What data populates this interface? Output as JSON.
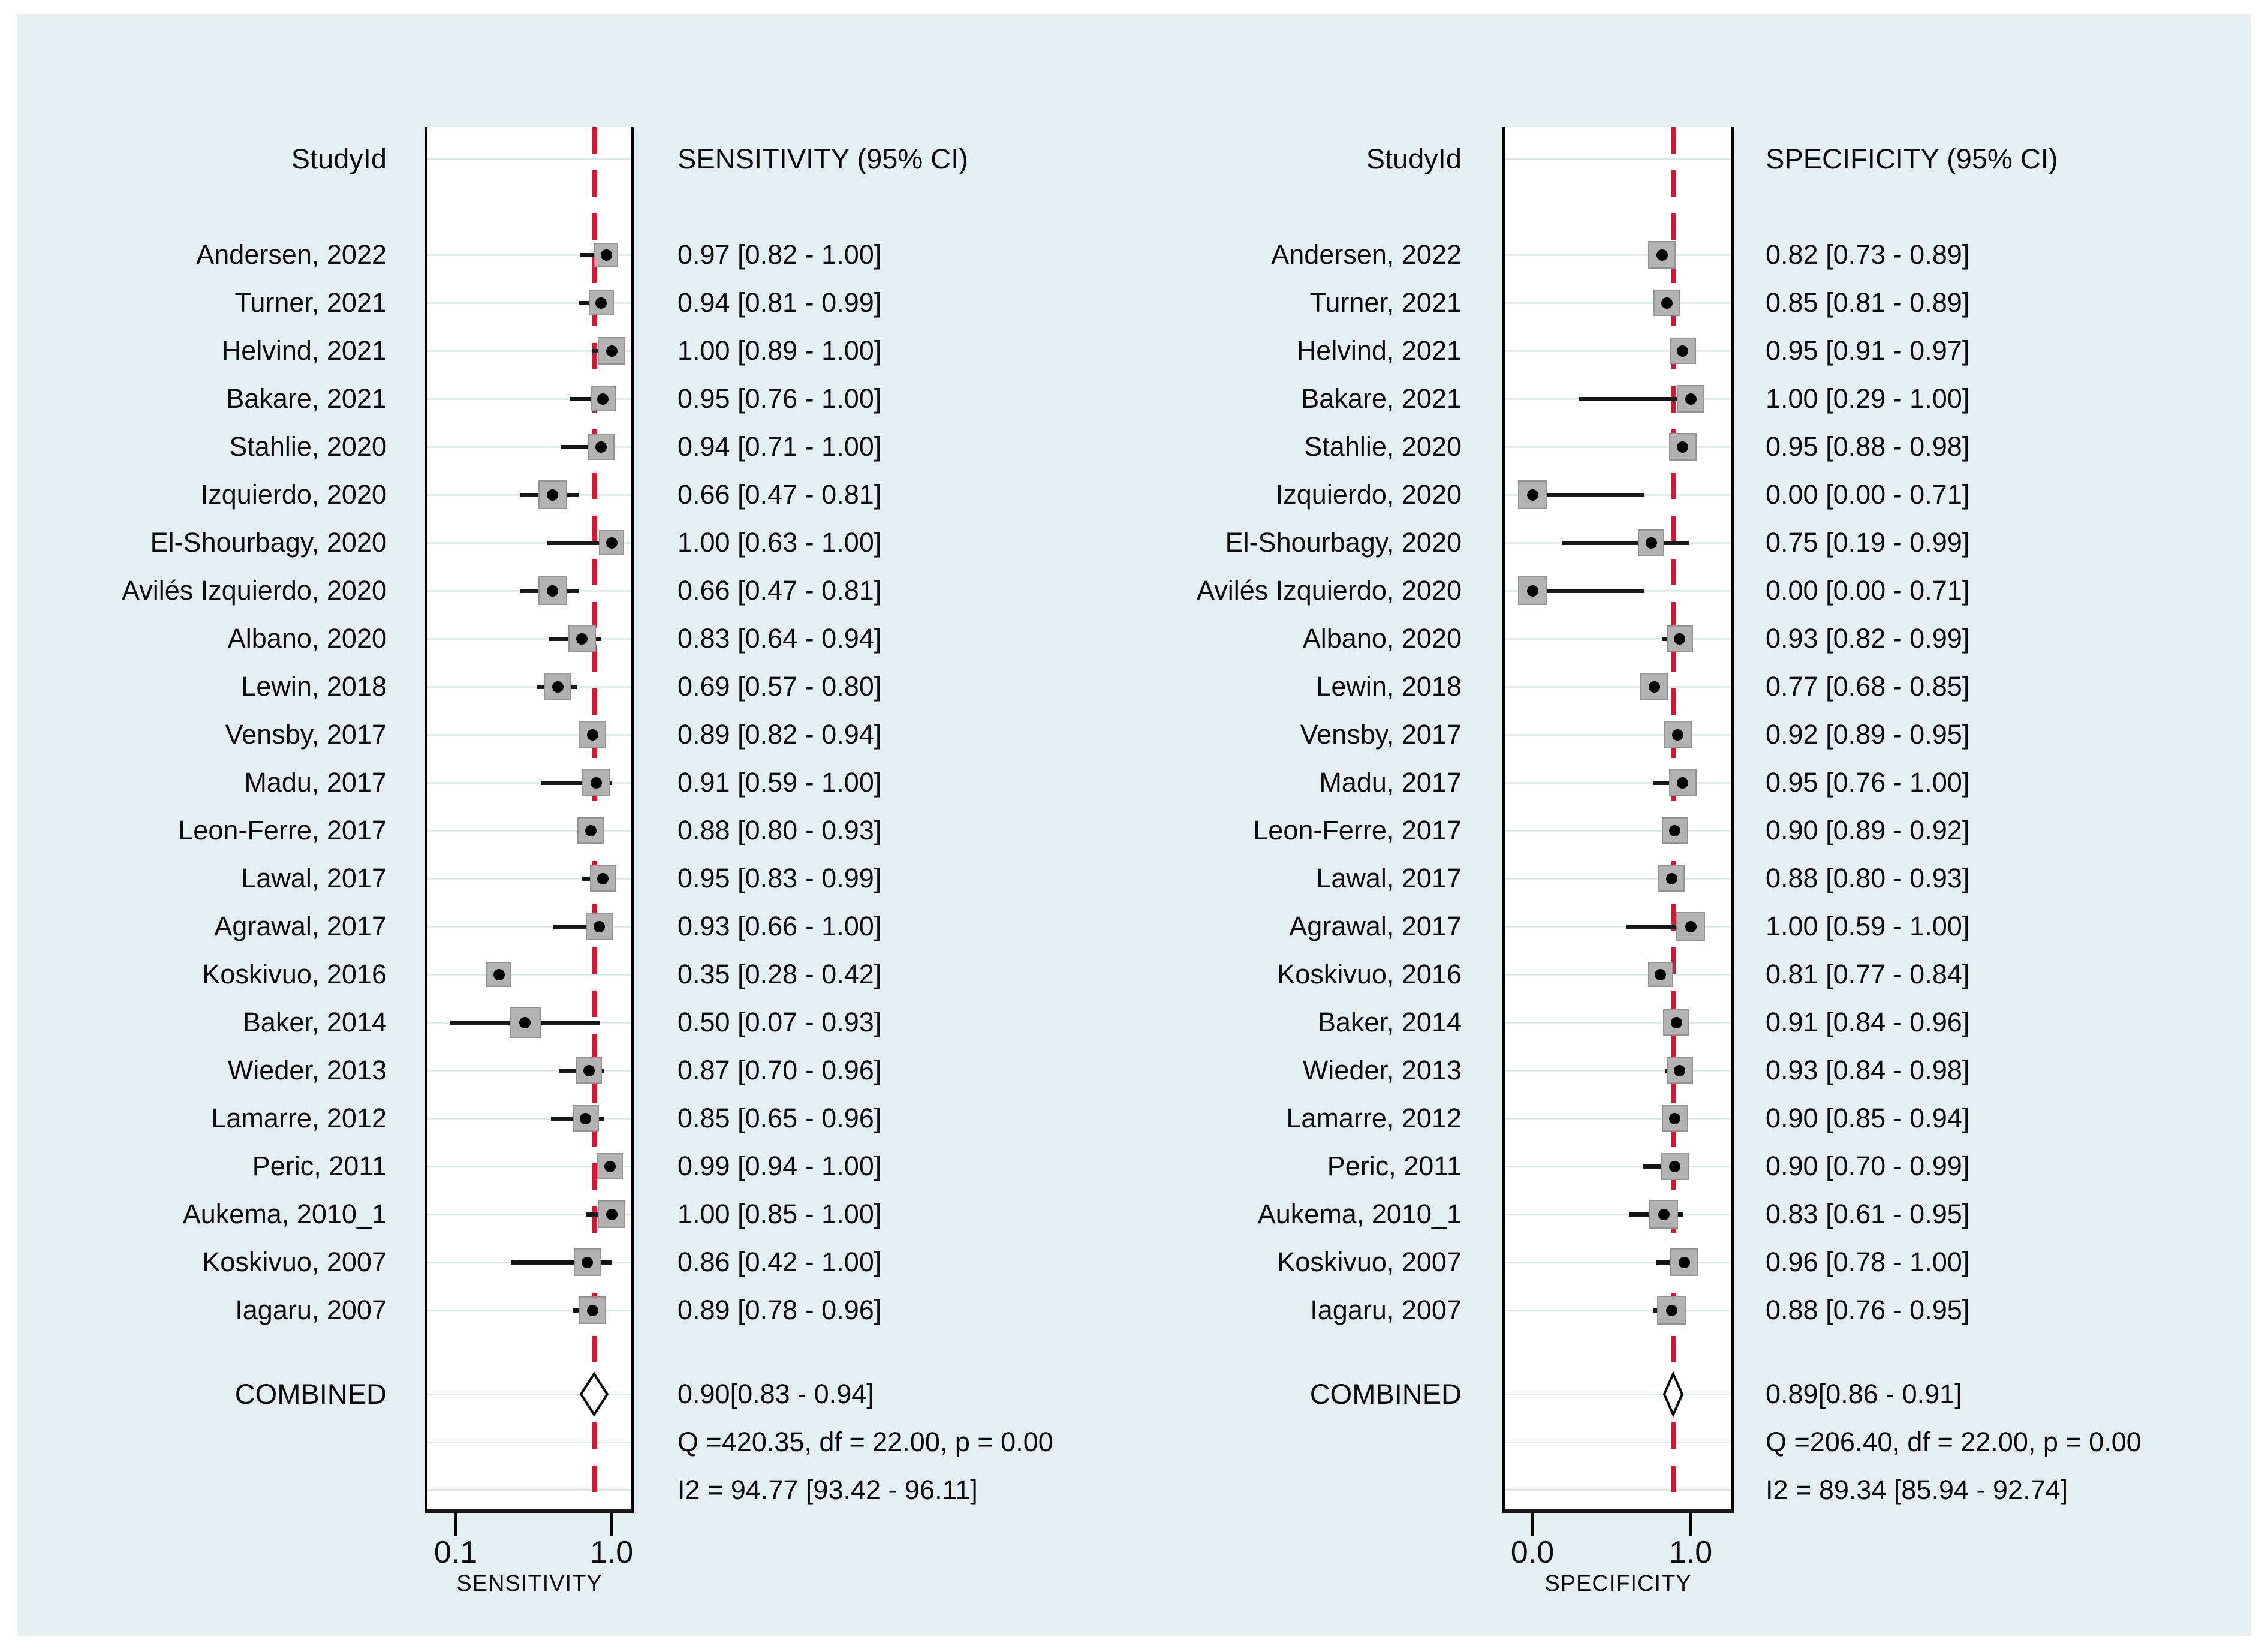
{
  "figure": {
    "background_color": "#e4eef0",
    "plot_background": "#ffffff",
    "grid_color": "#d9e9ec",
    "marker_color": "#b2b2b2",
    "ci_color": "#161616",
    "reference_line_color": "#e8112d",
    "text_color": "#0a0a0a"
  },
  "chart_data": {
    "type": "forest",
    "layout_hint": "two side-by-side forest plots, dashed red reference line at combined estimate, grid on, open diamond for pooled result",
    "panels": [
      {
        "study_header": "StudyId",
        "value_header": "SENSITIVITY (95% CI)",
        "axis_label": "SENSITIVITY",
        "ref_value": 0.9,
        "axis_ticks": [
          {
            "label": "0.1",
            "value": 0.1
          },
          {
            "label": "1.0",
            "value": 1.0
          }
        ],
        "rows": [
          {
            "study": "Andersen, 2022",
            "label": "0.97 [0.82 - 1.00]",
            "est": 0.97,
            "lo": 0.82,
            "hi": 1.0,
            "box": 40
          },
          {
            "study": "Turner, 2021",
            "label": "0.94 [0.81 - 0.99]",
            "est": 0.94,
            "lo": 0.81,
            "hi": 0.99,
            "box": 42
          },
          {
            "study": "Helvind, 2021",
            "label": "1.00 [0.89 - 1.00]",
            "est": 1.0,
            "lo": 0.89,
            "hi": 1.0,
            "box": 46
          },
          {
            "study": "Bakare, 2021",
            "label": "0.95 [0.76 - 1.00]",
            "est": 0.95,
            "lo": 0.76,
            "hi": 1.0,
            "box": 42
          },
          {
            "study": "Stahlie, 2020",
            "label": "0.94 [0.71 - 1.00]",
            "est": 0.94,
            "lo": 0.71,
            "hi": 1.0,
            "box": 44
          },
          {
            "study": "Izquierdo, 2020",
            "label": "0.66 [0.47 - 0.81]",
            "est": 0.66,
            "lo": 0.47,
            "hi": 0.81,
            "box": 48
          },
          {
            "study": "El-Shourbagy, 2020",
            "label": "1.00 [0.63 - 1.00]",
            "est": 1.0,
            "lo": 0.63,
            "hi": 1.0,
            "box": 42
          },
          {
            "study": "Avilés Izquierdo, 2020",
            "label": "0.66 [0.47 - 0.81]",
            "est": 0.66,
            "lo": 0.47,
            "hi": 0.81,
            "box": 48
          },
          {
            "study": "Albano, 2020",
            "label": "0.83 [0.64 - 0.94]",
            "est": 0.83,
            "lo": 0.64,
            "hi": 0.94,
            "box": 46
          },
          {
            "study": "Lewin, 2018",
            "label": "0.69 [0.57 - 0.80]",
            "est": 0.69,
            "lo": 0.57,
            "hi": 0.8,
            "box": 46
          },
          {
            "study": "Vensby, 2017",
            "label": "0.89 [0.82 - 0.94]",
            "est": 0.89,
            "lo": 0.82,
            "hi": 0.94,
            "box": 46
          },
          {
            "study": "Madu, 2017",
            "label": "0.91 [0.59 - 1.00]",
            "est": 0.91,
            "lo": 0.59,
            "hi": 1.0,
            "box": 46
          },
          {
            "study": "Leon-Ferre, 2017",
            "label": "0.88 [0.80 - 0.93]",
            "est": 0.88,
            "lo": 0.8,
            "hi": 0.93,
            "box": 44
          },
          {
            "study": "Lawal, 2017",
            "label": "0.95 [0.83 - 0.99]",
            "est": 0.95,
            "lo": 0.83,
            "hi": 0.99,
            "box": 44
          },
          {
            "study": "Agrawal, 2017",
            "label": "0.93 [0.66 - 1.00]",
            "est": 0.93,
            "lo": 0.66,
            "hi": 1.0,
            "box": 46
          },
          {
            "study": "Koskivuo, 2016",
            "label": "0.35 [0.28 - 0.42]",
            "est": 0.35,
            "lo": 0.28,
            "hi": 0.42,
            "box": 42
          },
          {
            "study": "Baker, 2014",
            "label": "0.50 [0.07 - 0.93]",
            "est": 0.5,
            "lo": 0.07,
            "hi": 0.93,
            "box": 52
          },
          {
            "study": "Wieder, 2013",
            "label": "0.87 [0.70 - 0.96]",
            "est": 0.87,
            "lo": 0.7,
            "hi": 0.96,
            "box": 44
          },
          {
            "study": "Lamarre, 2012",
            "label": "0.85 [0.65 - 0.96]",
            "est": 0.85,
            "lo": 0.65,
            "hi": 0.96,
            "box": 44
          },
          {
            "study": "Peric, 2011",
            "label": "0.99 [0.94 - 1.00]",
            "est": 0.99,
            "lo": 0.94,
            "hi": 1.0,
            "box": 44
          },
          {
            "study": "Aukema, 2010_1",
            "label": "1.00 [0.85 - 1.00]",
            "est": 1.0,
            "lo": 0.85,
            "hi": 1.0,
            "box": 46
          },
          {
            "study": "Koskivuo, 2007",
            "label": "0.86 [0.42 - 1.00]",
            "est": 0.86,
            "lo": 0.42,
            "hi": 1.0,
            "box": 46
          },
          {
            "study": "Iagaru, 2007",
            "label": "0.89 [0.78 - 0.96]",
            "est": 0.89,
            "lo": 0.78,
            "hi": 0.96,
            "box": 46
          }
        ],
        "combined": {
          "label": "COMBINED",
          "text": "0.90[0.83 - 0.94]",
          "est": 0.9,
          "lo": 0.83,
          "hi": 0.94
        },
        "q_text": "Q =420.35, df = 22.00, p =  0.00",
        "i2_text": "I2 = 94.77 [93.42 - 96.11]"
      },
      {
        "study_header": "StudyId",
        "value_header": "SPECIFICITY (95% CI)",
        "axis_label": "SPECIFICITY",
        "ref_value": 0.89,
        "axis_ticks": [
          {
            "label": "0.0",
            "value": 0.0
          },
          {
            "label": "1.0",
            "value": 1.0
          }
        ],
        "rows": [
          {
            "study": "Andersen, 2022",
            "label": "0.82 [0.73 - 0.89]",
            "est": 0.82,
            "lo": 0.73,
            "hi": 0.89,
            "box": 46
          },
          {
            "study": "Turner, 2021",
            "label": "0.85 [0.81 - 0.89]",
            "est": 0.85,
            "lo": 0.81,
            "hi": 0.89,
            "box": 44
          },
          {
            "study": "Helvind, 2021",
            "label": "0.95 [0.91 - 0.97]",
            "est": 0.95,
            "lo": 0.91,
            "hi": 0.97,
            "box": 44
          },
          {
            "study": "Bakare, 2021",
            "label": "1.00 [0.29 - 1.00]",
            "est": 1.0,
            "lo": 0.29,
            "hi": 1.0,
            "box": 46
          },
          {
            "study": "Stahlie, 2020",
            "label": "0.95 [0.88 - 0.98]",
            "est": 0.95,
            "lo": 0.88,
            "hi": 0.98,
            "box": 46
          },
          {
            "study": "Izquierdo, 2020",
            "label": "0.00 [0.00 - 0.71]",
            "est": 0.0,
            "lo": 0.0,
            "hi": 0.71,
            "box": 48
          },
          {
            "study": "El-Shourbagy, 2020",
            "label": "0.75 [0.19 - 0.99]",
            "est": 0.75,
            "lo": 0.19,
            "hi": 0.99,
            "box": 44
          },
          {
            "study": "Avilés Izquierdo, 2020",
            "label": "0.00 [0.00 - 0.71]",
            "est": 0.0,
            "lo": 0.0,
            "hi": 0.71,
            "box": 48
          },
          {
            "study": "Albano, 2020",
            "label": "0.93 [0.82 - 0.99]",
            "est": 0.93,
            "lo": 0.82,
            "hi": 0.99,
            "box": 44
          },
          {
            "study": "Lewin, 2018",
            "label": "0.77 [0.68 - 0.85]",
            "est": 0.77,
            "lo": 0.68,
            "hi": 0.85,
            "box": 46
          },
          {
            "study": "Vensby, 2017",
            "label": "0.92 [0.89 - 0.95]",
            "est": 0.92,
            "lo": 0.89,
            "hi": 0.95,
            "box": 46
          },
          {
            "study": "Madu, 2017",
            "label": "0.95 [0.76 - 1.00]",
            "est": 0.95,
            "lo": 0.76,
            "hi": 1.0,
            "box": 46
          },
          {
            "study": "Leon-Ferre, 2017",
            "label": "0.90 [0.89 - 0.92]",
            "est": 0.9,
            "lo": 0.89,
            "hi": 0.92,
            "box": 44
          },
          {
            "study": "Lawal, 2017",
            "label": "0.88 [0.80 - 0.93]",
            "est": 0.88,
            "lo": 0.8,
            "hi": 0.93,
            "box": 44
          },
          {
            "study": "Agrawal, 2017",
            "label": "1.00 [0.59 - 1.00]",
            "est": 1.0,
            "lo": 0.59,
            "hi": 1.0,
            "box": 48
          },
          {
            "study": "Koskivuo, 2016",
            "label": "0.81 [0.77 - 0.84]",
            "est": 0.81,
            "lo": 0.77,
            "hi": 0.84,
            "box": 42
          },
          {
            "study": "Baker, 2014",
            "label": "0.91 [0.84 - 0.96]",
            "est": 0.91,
            "lo": 0.84,
            "hi": 0.96,
            "box": 44
          },
          {
            "study": "Wieder, 2013",
            "label": "0.93 [0.84 - 0.98]",
            "est": 0.93,
            "lo": 0.84,
            "hi": 0.98,
            "box": 44
          },
          {
            "study": "Lamarre, 2012",
            "label": "0.90 [0.85 - 0.94]",
            "est": 0.9,
            "lo": 0.85,
            "hi": 0.94,
            "box": 44
          },
          {
            "study": "Peric, 2011",
            "label": "0.90 [0.70 - 0.99]",
            "est": 0.9,
            "lo": 0.7,
            "hi": 0.99,
            "box": 46
          },
          {
            "study": "Aukema, 2010_1",
            "label": "0.83 [0.61 - 0.95]",
            "est": 0.83,
            "lo": 0.61,
            "hi": 0.95,
            "box": 48
          },
          {
            "study": "Koskivuo, 2007",
            "label": "0.96 [0.78 - 1.00]",
            "est": 0.96,
            "lo": 0.78,
            "hi": 1.0,
            "box": 46
          },
          {
            "study": "Iagaru, 2007",
            "label": "0.88 [0.76 - 0.95]",
            "est": 0.88,
            "lo": 0.76,
            "hi": 0.95,
            "box": 48
          }
        ],
        "combined": {
          "label": "COMBINED",
          "text": "0.89[0.86 - 0.91]",
          "est": 0.89,
          "lo": 0.86,
          "hi": 0.91
        },
        "q_text": "Q =206.40, df = 22.00, p =  0.00",
        "i2_text": "I2 = 89.34 [85.94 - 92.74]"
      }
    ]
  }
}
